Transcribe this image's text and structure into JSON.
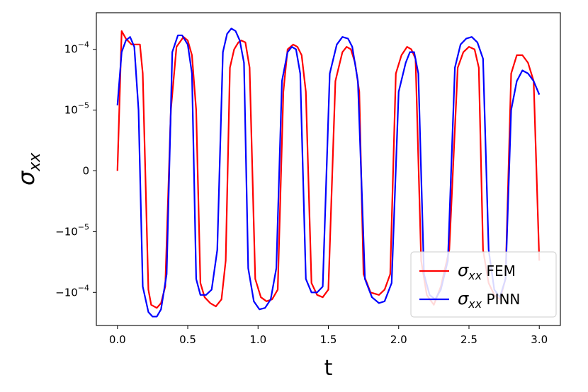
{
  "chart_data": {
    "type": "line",
    "xlabel": "t",
    "ylabel": "σ_xx",
    "ylabel_main": "σ",
    "ylabel_sub": "xx",
    "scale": "symlog",
    "linthresh": 1e-05,
    "xlim": [
      -0.15,
      3.15
    ],
    "ylim": [
      -0.00035,
      0.0004
    ],
    "xticks": [
      0.0,
      0.5,
      1.0,
      1.5,
      2.0,
      2.5,
      3.0
    ],
    "xtick_labels": [
      "0.0",
      "0.5",
      "1.0",
      "1.5",
      "2.0",
      "2.5",
      "3.0"
    ],
    "yticks": [
      -0.0001,
      -1e-05,
      0,
      1e-05,
      0.0001
    ],
    "ytick_labels": [
      {
        "base": "−10",
        "exp": "−4"
      },
      {
        "base": "−10",
        "exp": "−5"
      },
      {
        "base": "0",
        "exp": ""
      },
      {
        "base": "10",
        "exp": "−5"
      },
      {
        "base": "10",
        "exp": "−4"
      }
    ],
    "legend_position": "lower-right",
    "series": [
      {
        "name": "σ_xx FEM",
        "label_main": "σ",
        "label_sub": "xx",
        "label_rest": "FEM",
        "color": "#ff0000",
        "x": [
          0.0,
          0.03,
          0.06,
          0.1,
          0.16,
          0.18,
          0.22,
          0.24,
          0.28,
          0.31,
          0.34,
          0.38,
          0.42,
          0.47,
          0.5,
          0.53,
          0.56,
          0.59,
          0.62,
          0.66,
          0.7,
          0.74,
          0.77,
          0.8,
          0.83,
          0.86,
          0.88,
          0.91,
          0.94,
          0.98,
          1.02,
          1.06,
          1.1,
          1.14,
          1.18,
          1.21,
          1.25,
          1.28,
          1.31,
          1.34,
          1.38,
          1.42,
          1.46,
          1.5,
          1.55,
          1.6,
          1.63,
          1.66,
          1.69,
          1.72,
          1.75,
          1.8,
          1.86,
          1.9,
          1.94,
          1.98,
          2.02,
          2.06,
          2.09,
          2.12,
          2.16,
          2.2,
          2.25,
          2.3,
          2.36,
          2.42,
          2.46,
          2.5,
          2.54,
          2.57,
          2.6,
          2.64,
          2.68,
          2.72,
          2.76,
          2.8,
          2.84,
          2.88,
          2.92,
          2.96,
          3.0
        ],
        "y": [
          0,
          0.0002,
          0.00015,
          0.00012,
          0.00012,
          4e-05,
          -9e-05,
          -0.00016,
          -0.00018,
          -0.00015,
          -8e-05,
          1e-05,
          0.00011,
          0.00016,
          0.00014,
          8e-05,
          1e-05,
          -7e-05,
          -0.00012,
          -0.00015,
          -0.00017,
          -0.00013,
          -3e-05,
          5e-05,
          0.0001,
          0.00013,
          0.00014,
          0.00013,
          5e-05,
          -6e-05,
          -0.00012,
          -0.00014,
          -0.00013,
          -9e-05,
          2e-05,
          0.0001,
          0.00012,
          0.00011,
          8e-05,
          2e-05,
          -7e-05,
          -0.00011,
          -0.00012,
          -9e-05,
          3e-05,
          9e-05,
          0.00011,
          0.0001,
          6e-05,
          2e-05,
          -5e-05,
          -0.0001,
          -0.00011,
          -9e-05,
          -5e-05,
          4e-05,
          8e-05,
          0.00011,
          0.0001,
          7e-05,
          -3e-05,
          -0.00011,
          -0.00016,
          -8e-05,
          -2e-05,
          5e-05,
          9e-05,
          0.00011,
          0.0001,
          5e-05,
          -2e-05,
          -7e-05,
          -0.00011,
          -0.00013,
          -6e-05,
          4e-05,
          8e-05,
          8e-05,
          6e-05,
          3e-05,
          -3e-05
        ]
      },
      {
        "name": "σ_xx PINN",
        "label_main": "σ",
        "label_sub": "xx",
        "label_rest": "PINN",
        "color": "#0000ff",
        "x": [
          0.0,
          0.03,
          0.06,
          0.09,
          0.12,
          0.15,
          0.18,
          0.22,
          0.25,
          0.28,
          0.31,
          0.35,
          0.39,
          0.43,
          0.46,
          0.5,
          0.53,
          0.56,
          0.59,
          0.63,
          0.67,
          0.71,
          0.75,
          0.78,
          0.81,
          0.84,
          0.87,
          0.9,
          0.93,
          0.97,
          1.01,
          1.05,
          1.09,
          1.13,
          1.17,
          1.21,
          1.24,
          1.27,
          1.3,
          1.34,
          1.38,
          1.42,
          1.46,
          1.51,
          1.56,
          1.6,
          1.64,
          1.67,
          1.71,
          1.76,
          1.81,
          1.86,
          1.9,
          1.95,
          2.0,
          2.05,
          2.08,
          2.11,
          2.14,
          2.18,
          2.22,
          2.26,
          2.3,
          2.35,
          2.4,
          2.44,
          2.48,
          2.52,
          2.56,
          2.6,
          2.64,
          2.68,
          2.72,
          2.76,
          2.8,
          2.84,
          2.88,
          2.92,
          2.96,
          3.0
        ],
        "y": [
          1.2e-05,
          9e-05,
          0.00014,
          0.00016,
          0.00011,
          1e-05,
          -8e-05,
          -0.00021,
          -0.00025,
          -0.00025,
          -0.00019,
          -5e-05,
          9e-05,
          0.00017,
          0.00017,
          0.00012,
          4e-05,
          -6e-05,
          -0.00011,
          -0.00011,
          -9e-05,
          -2e-05,
          9e-05,
          0.00018,
          0.00022,
          0.0002,
          0.00014,
          6e-05,
          -4e-05,
          -0.00014,
          -0.00019,
          -0.00018,
          -0.00013,
          -4e-05,
          3e-05,
          9e-05,
          0.00011,
          0.0001,
          4e-05,
          -6e-05,
          -0.0001,
          -0.0001,
          -8e-05,
          4e-05,
          0.00012,
          0.00016,
          0.00015,
          0.00011,
          3e-05,
          -6e-05,
          -0.00012,
          -0.00015,
          -0.00014,
          -7e-05,
          2e-05,
          6e-05,
          9e-05,
          9e-05,
          4e-05,
          -5e-05,
          -0.00011,
          -0.00013,
          -9e-05,
          -3e-05,
          5e-05,
          0.00012,
          0.00015,
          0.00016,
          0.00013,
          7e-05,
          -2e-05,
          -9e-05,
          -0.00012,
          -6e-05,
          1e-05,
          3e-05,
          4.5e-05,
          4e-05,
          3e-05,
          1.8e-05
        ]
      }
    ]
  }
}
